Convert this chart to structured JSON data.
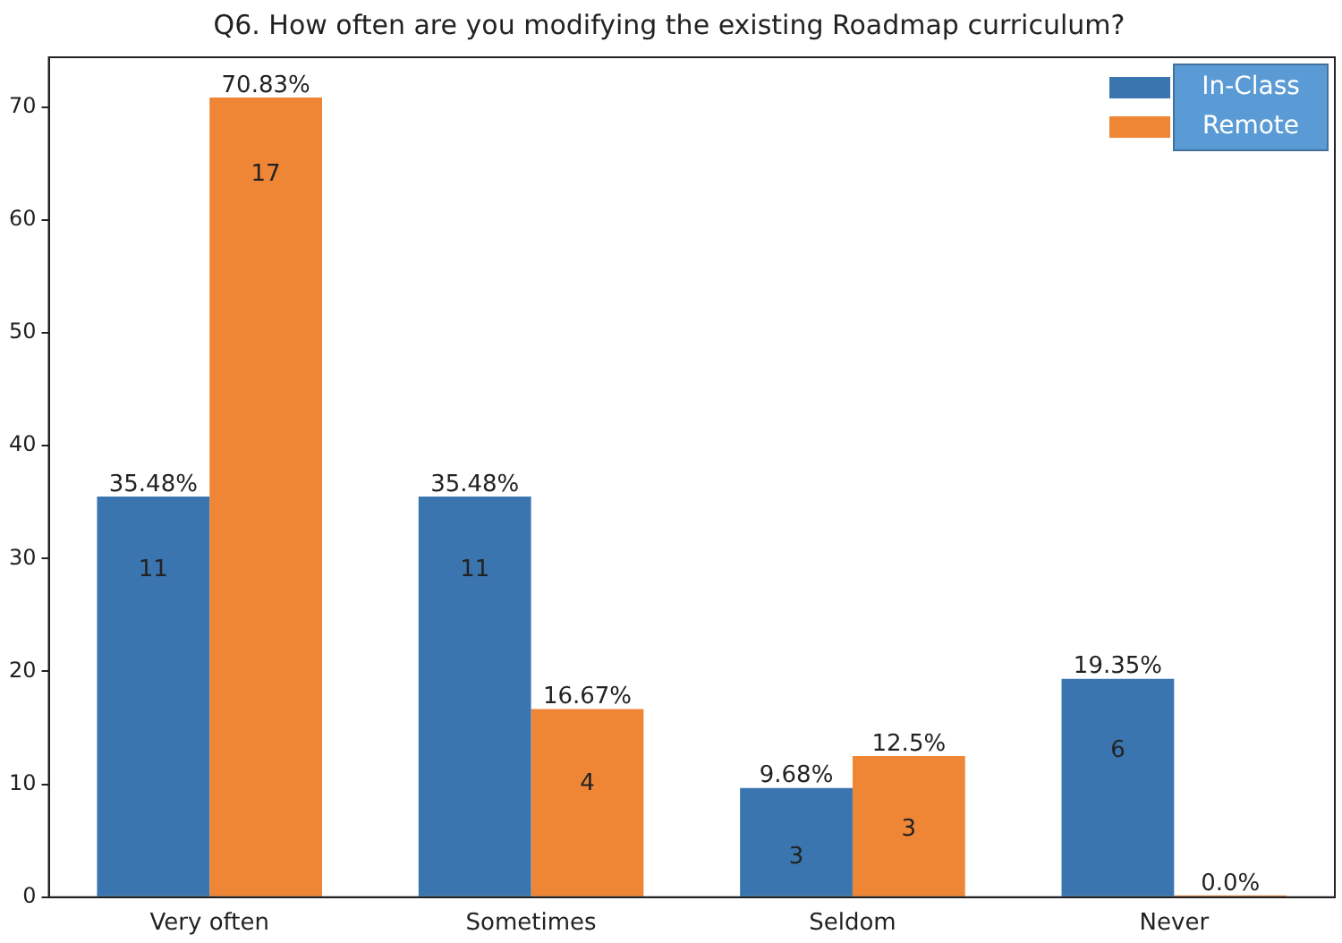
{
  "chart_data": {
    "type": "bar",
    "title": "Q6. How often are you modifying the existing Roadmap curriculum?",
    "categories": [
      "Very often",
      "Sometimes",
      "Seldom",
      "Never"
    ],
    "series": [
      {
        "name": "In-Class",
        "color": "#3b75af",
        "values": [
          35.48,
          35.48,
          9.68,
          19.35
        ],
        "value_labels": [
          "35.48%",
          "35.48%",
          "9.68%",
          "19.35%"
        ]
      },
      {
        "name": "Remote",
        "color": "#ef8636",
        "values": [
          70.83,
          16.67,
          12.5,
          0.0
        ],
        "value_labels": [
          "70.83%",
          "16.67%",
          "12.5%",
          "0.0%"
        ]
      }
    ],
    "annotations": [
      {
        "text": "11",
        "x": "Very often",
        "y": 29
      },
      {
        "text": "17",
        "x": "Very often",
        "y": 64
      },
      {
        "text": "11",
        "x": "Sometimes",
        "y": 29
      },
      {
        "text": "4",
        "x": "Sometimes",
        "y": 10
      },
      {
        "text": "3",
        "x": "Seldom",
        "y": 3.5
      },
      {
        "text": "3",
        "x": "Seldom",
        "y": 6
      },
      {
        "text": "6",
        "x": "Never",
        "y": 13
      }
    ],
    "ylim": [
      0,
      74.4
    ],
    "yticks": [
      0,
      10,
      20,
      30,
      40,
      50,
      60,
      70
    ],
    "grid": false,
    "legend": "top right"
  }
}
